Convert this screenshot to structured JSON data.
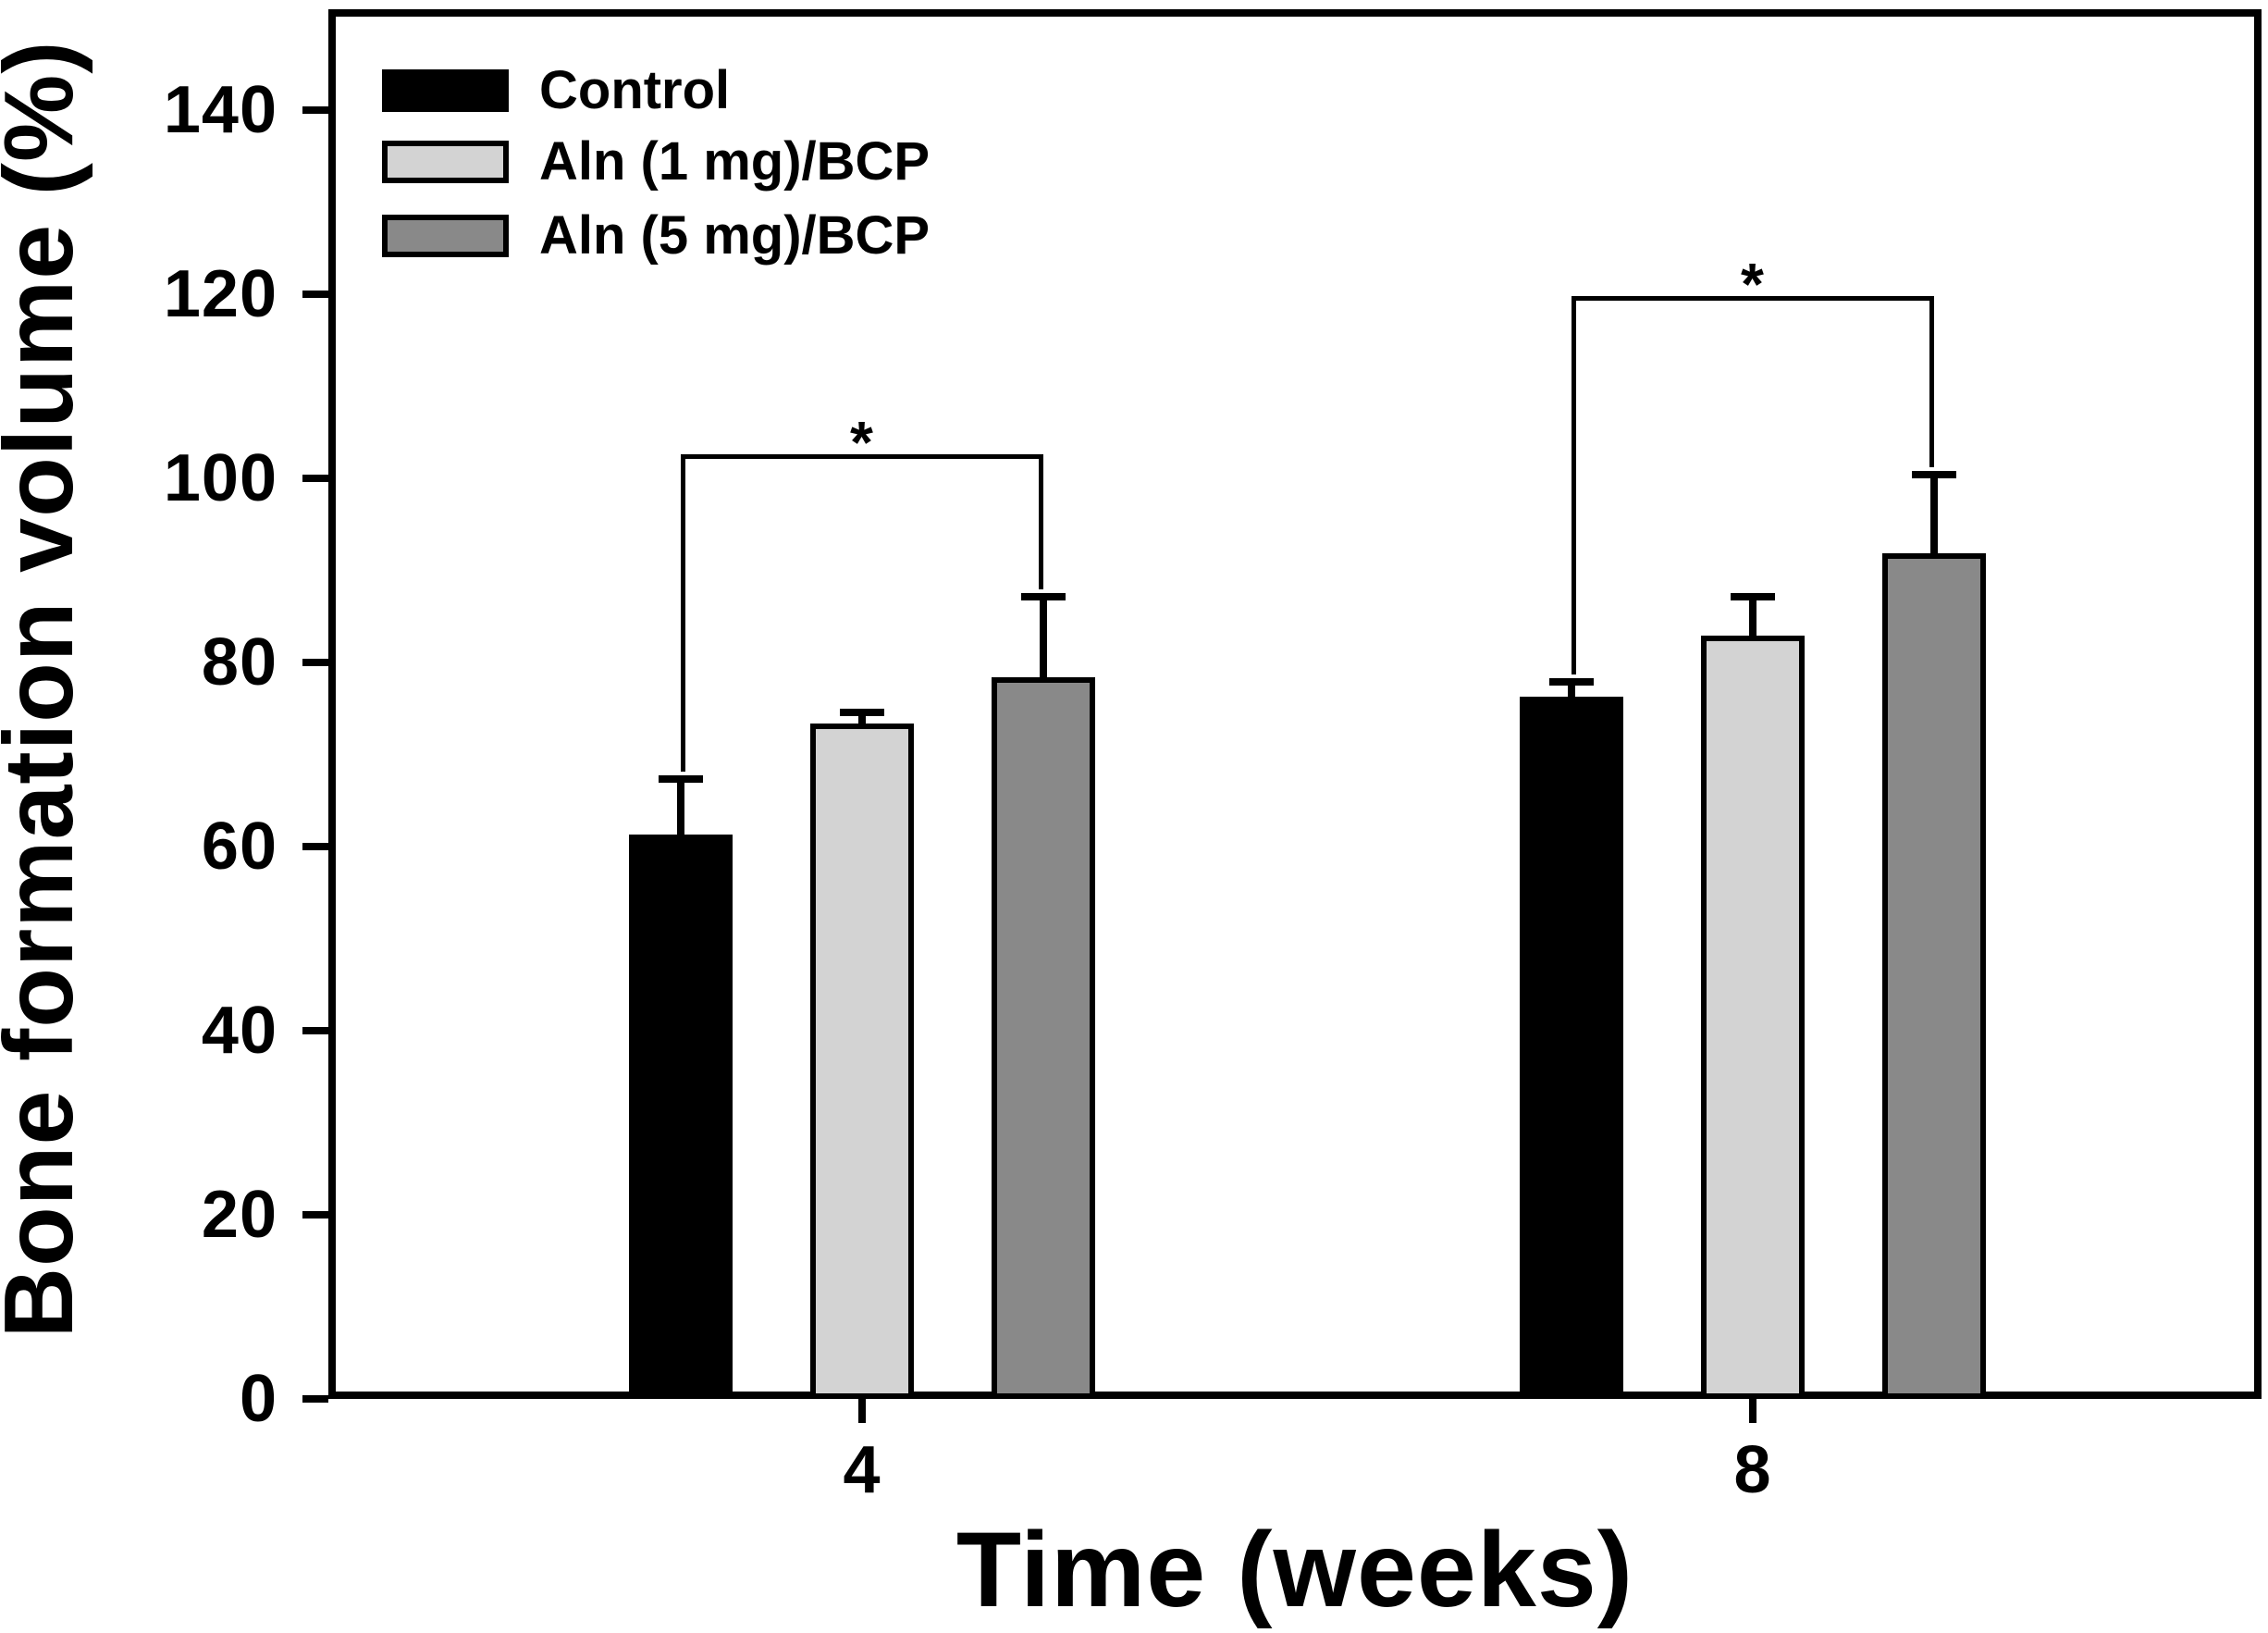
{
  "chart_data": {
    "type": "bar",
    "title": "",
    "xlabel": "Time (weeks)",
    "ylabel": "Bone formation volume (%)",
    "categories": [
      "4",
      "8"
    ],
    "series": [
      {
        "name": "Control",
        "color": "#000000",
        "values": [
          61.3,
          76.3
        ],
        "errors_plus": [
          6.1,
          1.6
        ]
      },
      {
        "name": "Aln (1 mg)/BCP",
        "color": "#d3d3d3",
        "values": [
          73.4,
          82.9
        ],
        "errors_plus": [
          1.2,
          4.3
        ]
      },
      {
        "name": "Aln (5 mg)/BCP",
        "color": "#898989",
        "values": [
          78.4,
          91.9
        ],
        "errors_plus": [
          8.8,
          8.5
        ]
      }
    ],
    "yticks": [
      0,
      20,
      40,
      60,
      80,
      100,
      120,
      140
    ],
    "ylim": [
      0,
      151
    ],
    "grid": false,
    "legend_position": "upper-left",
    "error_bars": "upper-only",
    "significance_brackets": [
      {
        "category_index": 0,
        "from_series": 0,
        "to_series": 2,
        "y": 102.6,
        "label": "*"
      },
      {
        "category_index": 1,
        "from_series": 0,
        "to_series": 2,
        "y": 119.8,
        "label": "*"
      }
    ]
  }
}
